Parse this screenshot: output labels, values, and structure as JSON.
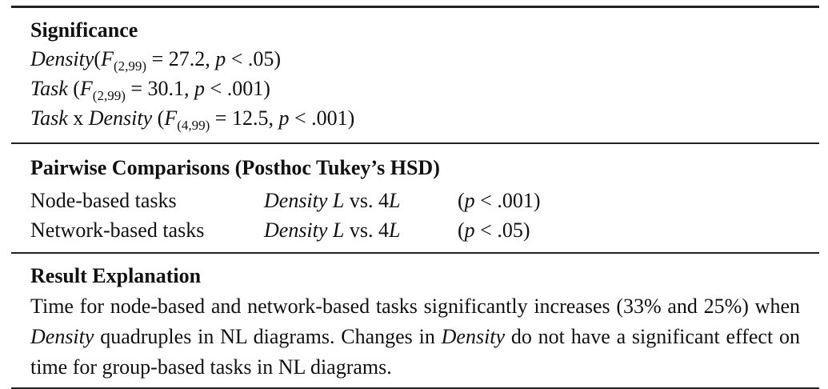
{
  "significance": {
    "heading": "Significance",
    "lines": [
      {
        "factor": "Density",
        "sep": "(",
        "F": "F",
        "df": "(2,99)",
        "stat": " = 27.2, ",
        "p": "p",
        "pstat": " < .05)"
      },
      {
        "factor": "Task",
        "sep": " (",
        "F": "F",
        "df": "(2,99)",
        "stat": " = 30.1, ",
        "p": "p",
        "pstat": " < .001)"
      },
      {
        "factor_a": "Task",
        "x": " x ",
        "factor_b": "Density",
        "sep": " (",
        "F": "F",
        "df": "(4,99)",
        "stat": " = 12.5, ",
        "p": "p",
        "pstat": " < .001)"
      }
    ]
  },
  "pairwise": {
    "heading": "Pairwise Comparisons (Posthoc Tukey’s HSD)",
    "rows": [
      {
        "task": "Node-based tasks",
        "density": "Density",
        "L": "L",
        "vs": " vs. 4",
        "L2": "L",
        "popen": "(",
        "p": "p",
        "pval": " < .001)"
      },
      {
        "task": "Network-based tasks",
        "density": "Density",
        "L": "L",
        "vs": " vs. 4",
        "L2": "L",
        "popen": "(",
        "p": "p",
        "pval": " < .05)"
      }
    ]
  },
  "result": {
    "heading": "Result Explanation",
    "p1": "Time for node-based and network-based tasks significantly increases (33% and 25%) when ",
    "em1": "Density",
    "p2": " quadruples in NL diagrams. Changes in ",
    "em2": "Density",
    "p3": " do not have a significant effect on time for group-based tasks in NL diagrams."
  }
}
